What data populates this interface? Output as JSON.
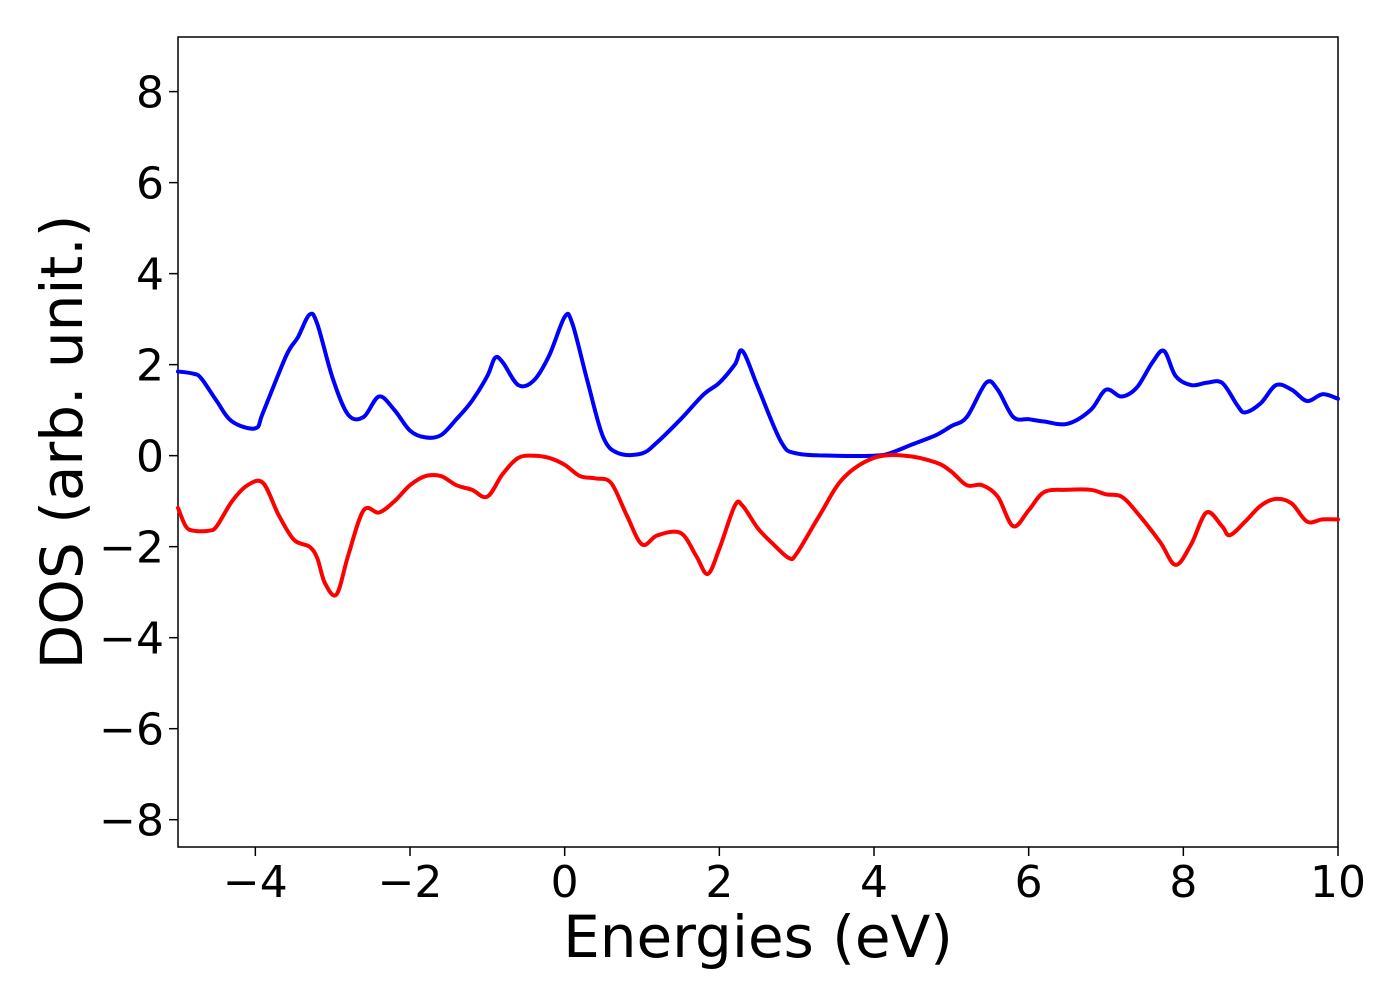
{
  "chart_data": {
    "type": "line",
    "xlabel": "Energies (eV)",
    "ylabel": "DOS (arb. unit.)",
    "xlim": [
      -5,
      10
    ],
    "ylim": [
      -8.6,
      9.2
    ],
    "xticks": [
      -4,
      -2,
      0,
      2,
      4,
      6,
      8,
      10
    ],
    "xtick_labels": [
      "−4",
      "−2",
      "0",
      "2",
      "4",
      "6",
      "8",
      "10"
    ],
    "yticks": [
      -8,
      -6,
      -4,
      -2,
      0,
      2,
      4,
      6,
      8
    ],
    "ytick_labels": [
      "−8",
      "−6",
      "−4",
      "−2",
      "0",
      "2",
      "4",
      "6",
      "8"
    ],
    "grid": false,
    "legend": "none",
    "series": [
      {
        "color": "#0000ff",
        "x": [
          -5.0,
          -4.8,
          -4.7,
          -4.5,
          -4.3,
          -4.0,
          -3.9,
          -3.6,
          -3.45,
          -3.3,
          -3.2,
          -3.0,
          -2.8,
          -2.6,
          -2.4,
          -2.2,
          -2.0,
          -1.8,
          -1.6,
          -1.4,
          -1.2,
          -1.0,
          -0.9,
          -0.8,
          -0.6,
          -0.4,
          -0.2,
          0.0,
          0.1,
          0.3,
          0.5,
          0.7,
          1.0,
          1.2,
          1.5,
          1.8,
          2.0,
          2.2,
          2.3,
          2.5,
          2.8,
          3.0,
          3.5,
          4.0,
          4.2,
          4.5,
          4.8,
          5.0,
          5.2,
          5.45,
          5.6,
          5.8,
          6.0,
          6.2,
          6.5,
          6.8,
          7.0,
          7.2,
          7.4,
          7.6,
          7.75,
          7.9,
          8.1,
          8.3,
          8.5,
          8.7,
          8.8,
          9.0,
          9.2,
          9.4,
          9.6,
          9.8,
          10.0
        ],
        "y": [
          1.85,
          1.8,
          1.7,
          1.2,
          0.75,
          0.6,
          0.95,
          2.2,
          2.6,
          3.1,
          2.9,
          1.7,
          0.9,
          0.85,
          1.3,
          1.0,
          0.55,
          0.4,
          0.45,
          0.8,
          1.2,
          1.75,
          2.15,
          2.05,
          1.55,
          1.65,
          2.2,
          3.05,
          2.9,
          1.6,
          0.4,
          0.05,
          0.05,
          0.3,
          0.8,
          1.35,
          1.6,
          2.0,
          2.3,
          1.5,
          0.3,
          0.05,
          0.0,
          0.0,
          0.05,
          0.25,
          0.45,
          0.65,
          0.85,
          1.6,
          1.45,
          0.85,
          0.8,
          0.75,
          0.7,
          1.0,
          1.45,
          1.3,
          1.5,
          2.05,
          2.3,
          1.75,
          1.55,
          1.6,
          1.6,
          1.1,
          0.95,
          1.15,
          1.55,
          1.45,
          1.2,
          1.35,
          1.25
        ]
      },
      {
        "color": "#ff0000",
        "x": [
          -5.0,
          -4.9,
          -4.8,
          -4.6,
          -4.5,
          -4.3,
          -4.1,
          -3.9,
          -3.7,
          -3.5,
          -3.3,
          -3.2,
          -3.1,
          -2.95,
          -2.8,
          -2.6,
          -2.4,
          -2.2,
          -2.0,
          -1.8,
          -1.6,
          -1.4,
          -1.2,
          -1.0,
          -0.8,
          -0.6,
          -0.4,
          -0.2,
          0.0,
          0.2,
          0.4,
          0.6,
          0.8,
          1.0,
          1.2,
          1.5,
          1.7,
          1.85,
          2.0,
          2.2,
          2.3,
          2.5,
          2.7,
          2.9,
          3.0,
          3.3,
          3.6,
          4.0,
          4.4,
          4.8,
          5.0,
          5.2,
          5.4,
          5.6,
          5.8,
          6.0,
          6.2,
          6.5,
          6.8,
          7.0,
          7.2,
          7.4,
          7.7,
          7.9,
          8.1,
          8.3,
          8.5,
          8.6,
          8.8,
          9.0,
          9.2,
          9.4,
          9.6,
          9.8,
          10.0
        ],
        "y": [
          -1.15,
          -1.55,
          -1.65,
          -1.65,
          -1.55,
          -1.0,
          -0.65,
          -0.6,
          -1.3,
          -1.85,
          -2.0,
          -2.25,
          -2.8,
          -3.05,
          -2.2,
          -1.2,
          -1.25,
          -1.0,
          -0.65,
          -0.45,
          -0.45,
          -0.65,
          -0.75,
          -0.9,
          -0.4,
          -0.05,
          -0.0,
          -0.05,
          -0.2,
          -0.45,
          -0.5,
          -0.6,
          -1.3,
          -1.95,
          -1.75,
          -1.7,
          -2.2,
          -2.6,
          -2.05,
          -1.1,
          -1.1,
          -1.6,
          -1.95,
          -2.25,
          -2.15,
          -1.3,
          -0.5,
          -0.05,
          -0.0,
          -0.15,
          -0.35,
          -0.65,
          -0.65,
          -0.9,
          -1.55,
          -1.2,
          -0.8,
          -0.75,
          -0.75,
          -0.85,
          -0.9,
          -1.25,
          -1.9,
          -2.4,
          -1.95,
          -1.25,
          -1.55,
          -1.75,
          -1.45,
          -1.1,
          -0.95,
          -1.05,
          -1.45,
          -1.4,
          -1.4
        ]
      }
    ]
  }
}
